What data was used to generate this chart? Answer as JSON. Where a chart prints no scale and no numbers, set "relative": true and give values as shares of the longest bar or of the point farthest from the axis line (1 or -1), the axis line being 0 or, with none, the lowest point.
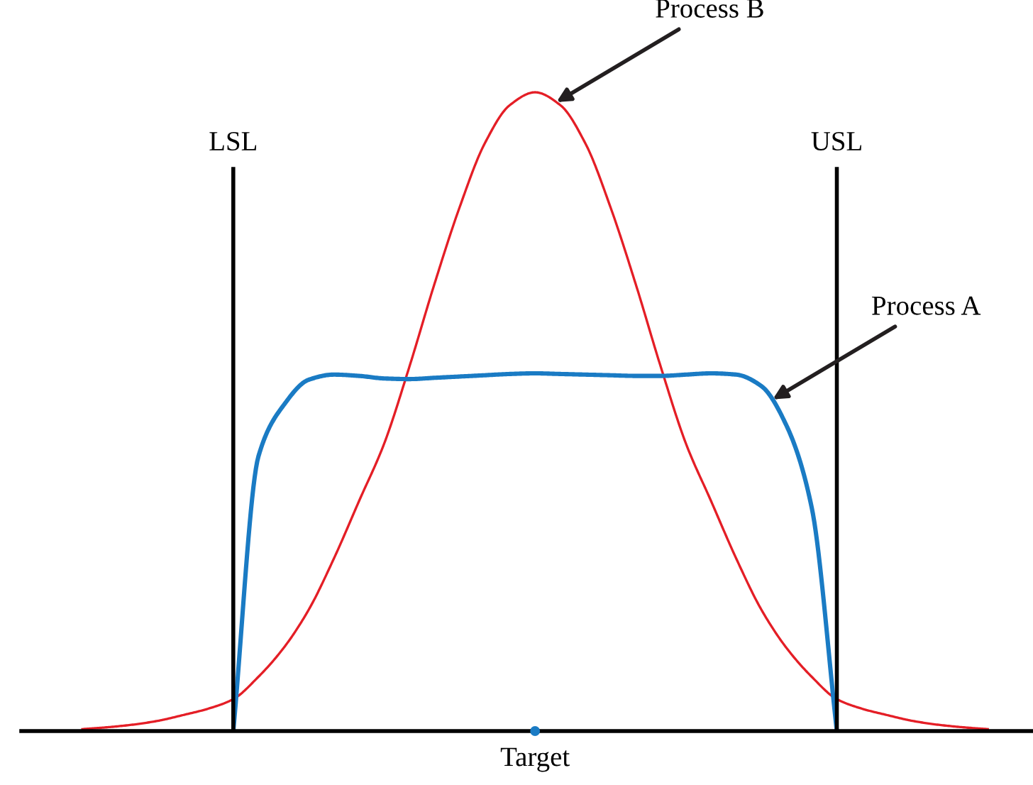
{
  "chart_data": {
    "type": "line",
    "relative": true,
    "legend": false,
    "marker": "none",
    "line_style": "solid",
    "categories": [
      null,
      null,
      null,
      null,
      null,
      null,
      null,
      null,
      null,
      null,
      null,
      null,
      null,
      null,
      null,
      null,
      null,
      null,
      null,
      null,
      null,
      null,
      null,
      null,
      null,
      null,
      null,
      null,
      null,
      null,
      null,
      null,
      null,
      null,
      null,
      null,
      null,
      null,
      null
    ],
    "series": [
      {
        "color": "#e41e26",
        "values": [
          null,
          0.003,
          0.006,
          0.01,
          0.016,
          0.025,
          0.035,
          0.05,
          0.085,
          0.13,
          0.19,
          0.27,
          0.36,
          0.45,
          0.57,
          0.7,
          0.82,
          0.92,
          0.98,
          1,
          0.98,
          0.92,
          0.82,
          0.7,
          0.57,
          0.45,
          0.36,
          0.27,
          0.19,
          0.13,
          0.085,
          0.05,
          0.035,
          0.025,
          0.016,
          0.01,
          0.006,
          0.003,
          null
        ]
      },
      {
        "color": "#1a7bc4",
        "values": [
          null,
          null,
          null,
          null,
          null,
          null,
          null,
          0,
          0.43,
          0.51,
          0.55,
          0.558,
          0.556,
          0.552,
          0.551,
          0.553,
          0.555,
          0.557,
          0.559,
          0.56,
          0.559,
          0.558,
          0.557,
          0.556,
          0.556,
          0.558,
          0.56,
          0.558,
          0.54,
          0.478,
          0.35,
          0,
          null,
          null,
          null,
          null,
          null,
          null,
          null
        ]
      }
    ],
    "annotations": [
      "Process B",
      "Process A",
      "Target",
      "LSL",
      "USL"
    ]
  }
}
